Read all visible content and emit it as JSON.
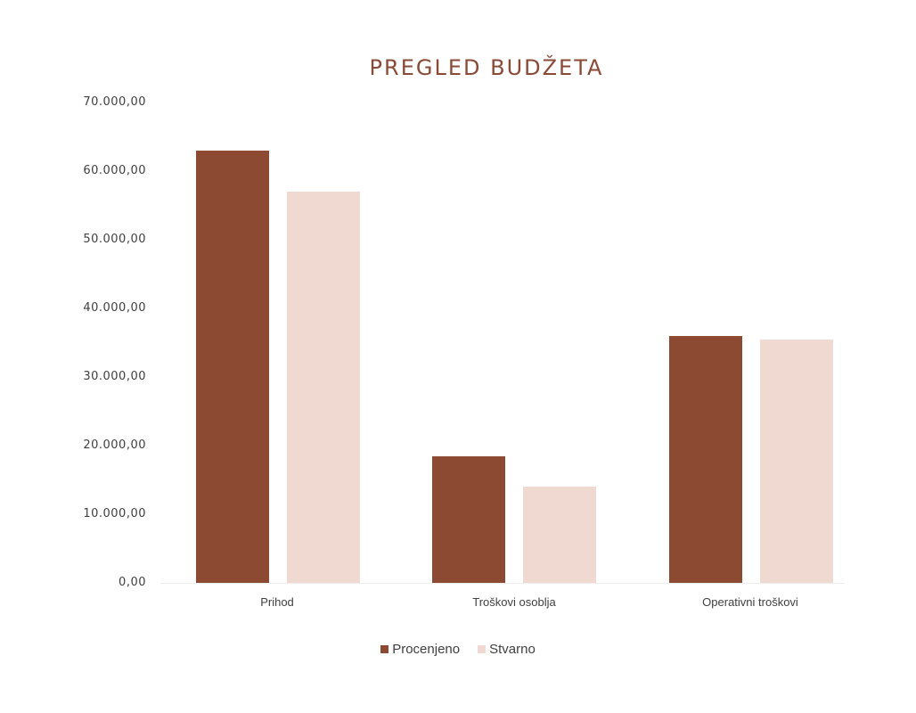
{
  "chart_data": {
    "type": "bar",
    "title": "PREGLED BUDŽETA",
    "categories": [
      "Prihod",
      "Troškovi osoblja",
      "Operativni troškovi"
    ],
    "series": [
      {
        "name": "Procenjeno",
        "color": "#8b4a31",
        "values": [
          63000,
          18500,
          36000
        ]
      },
      {
        "name": "Stvarno",
        "color": "#efd9d0",
        "values": [
          57000,
          14000,
          35500
        ]
      }
    ],
    "xlabel": "",
    "ylabel": "",
    "ylim": [
      0,
      70000
    ],
    "yticks": [
      "0,00",
      "10.000,00",
      "20.000,00",
      "30.000,00",
      "40.000,00",
      "50.000,00",
      "60.000,00",
      "70.000,00"
    ],
    "grid": false,
    "legend_position": "bottom"
  },
  "legend": {
    "items": [
      {
        "label": "Procenjeno",
        "color": "#8b4a31"
      },
      {
        "label": "Stvarno",
        "color": "#efd9d0"
      }
    ]
  }
}
